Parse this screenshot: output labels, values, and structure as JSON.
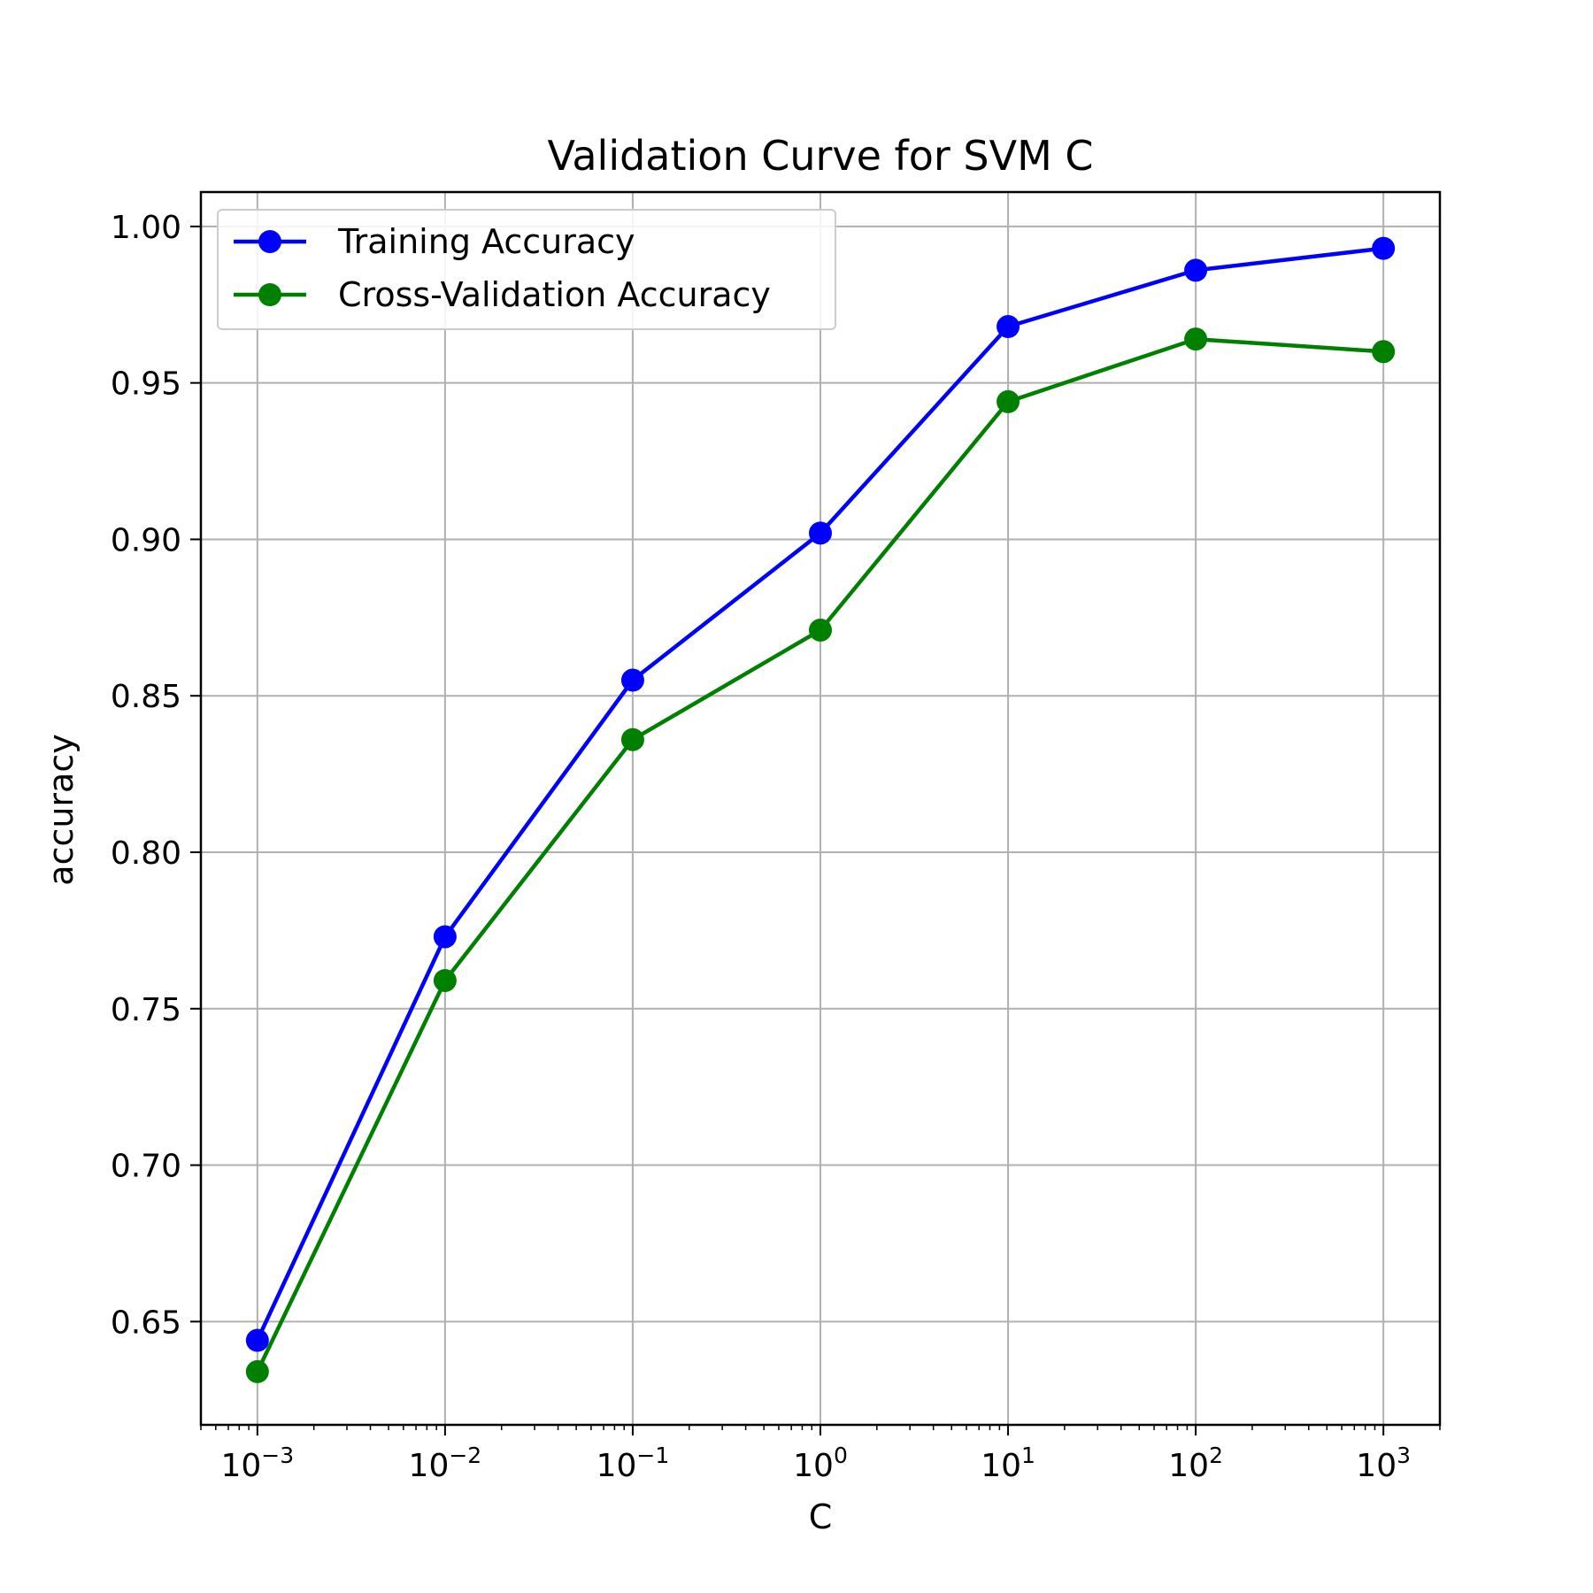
{
  "chart_data": {
    "type": "line",
    "title": "Validation Curve for SVM C",
    "xlabel": "C",
    "ylabel": "accuracy",
    "x_scale": "log",
    "x": [
      0.001,
      0.01,
      0.1,
      1,
      10,
      100,
      1000
    ],
    "xlim": [
      0.0005,
      2000
    ],
    "ylim": [
      0.617,
      1.011
    ],
    "x_ticks": [
      {
        "value": 0.001,
        "base": "10",
        "exp": "−3"
      },
      {
        "value": 0.01,
        "base": "10",
        "exp": "−2"
      },
      {
        "value": 0.1,
        "base": "10",
        "exp": "−1"
      },
      {
        "value": 1,
        "base": "10",
        "exp": "0"
      },
      {
        "value": 10,
        "base": "10",
        "exp": "1"
      },
      {
        "value": 100,
        "base": "10",
        "exp": "2"
      },
      {
        "value": 1000,
        "base": "10",
        "exp": "3"
      }
    ],
    "y_ticks": [
      {
        "value": 0.65,
        "label": "0.65"
      },
      {
        "value": 0.7,
        "label": "0.70"
      },
      {
        "value": 0.75,
        "label": "0.75"
      },
      {
        "value": 0.8,
        "label": "0.80"
      },
      {
        "value": 0.85,
        "label": "0.85"
      },
      {
        "value": 0.9,
        "label": "0.90"
      },
      {
        "value": 0.95,
        "label": "0.95"
      },
      {
        "value": 1.0,
        "label": "1.00"
      }
    ],
    "grid": true,
    "legend_position": "top-left",
    "series": [
      {
        "name": "Training Accuracy",
        "color": "#0000ff",
        "marker": "circle",
        "values": [
          0.644,
          0.773,
          0.855,
          0.902,
          0.968,
          0.986,
          0.993
        ]
      },
      {
        "name": "Cross-Validation Accuracy",
        "color": "#008000",
        "marker": "circle",
        "values": [
          0.634,
          0.759,
          0.836,
          0.871,
          0.944,
          0.964,
          0.96
        ]
      }
    ]
  }
}
